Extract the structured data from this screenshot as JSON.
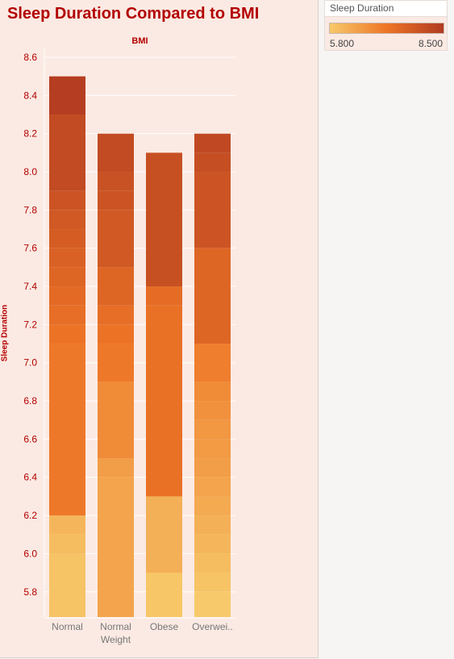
{
  "chart_data": {
    "type": "bar",
    "stacked": true,
    "title": "Sleep Duration Compared to BMI",
    "top_axis_label": "BMI",
    "ylabel": "Sleep Duration",
    "ylim": [
      5.65,
      8.6
    ],
    "yticks": [
      5.8,
      6.0,
      6.2,
      6.4,
      6.6,
      6.8,
      7.0,
      7.2,
      7.4,
      7.6,
      7.8,
      8.0,
      8.2,
      8.4,
      8.6
    ],
    "ytick_labels": [
      "5.8",
      "6.0",
      "6.2",
      "6.4",
      "6.6",
      "6.8",
      "7.0",
      "7.2",
      "7.4",
      "7.6",
      "7.8",
      "8.0",
      "8.2",
      "8.4",
      "8.6"
    ],
    "grid": true,
    "categories": [
      "Normal",
      "Normal Weight",
      "Obese",
      "Overwei.."
    ],
    "bars": [
      {
        "category": "Normal",
        "bands": [
          {
            "from": 5.65,
            "to": 6.0,
            "value": 5.9
          },
          {
            "from": 6.0,
            "to": 6.1,
            "value": 6.0
          },
          {
            "from": 6.1,
            "to": 6.2,
            "value": 6.1
          },
          {
            "from": 6.2,
            "to": 7.1,
            "value": 7.1
          },
          {
            "from": 7.1,
            "to": 7.2,
            "value": 7.2
          },
          {
            "from": 7.2,
            "to": 7.3,
            "value": 7.3
          },
          {
            "from": 7.3,
            "to": 7.4,
            "value": 7.4
          },
          {
            "from": 7.4,
            "to": 7.5,
            "value": 7.5
          },
          {
            "from": 7.5,
            "to": 7.6,
            "value": 7.6
          },
          {
            "from": 7.6,
            "to": 7.7,
            "value": 7.7
          },
          {
            "from": 7.7,
            "to": 7.8,
            "value": 7.8
          },
          {
            "from": 7.8,
            "to": 7.9,
            "value": 7.9
          },
          {
            "from": 7.9,
            "to": 8.3,
            "value": 8.1
          },
          {
            "from": 8.3,
            "to": 8.5,
            "value": 8.4
          }
        ]
      },
      {
        "category": "Normal Weight",
        "bands": [
          {
            "from": 5.65,
            "to": 6.4,
            "value": 6.4
          },
          {
            "from": 6.4,
            "to": 6.5,
            "value": 6.5
          },
          {
            "from": 6.5,
            "to": 6.9,
            "value": 6.8
          },
          {
            "from": 6.9,
            "to": 7.1,
            "value": 7.1
          },
          {
            "from": 7.1,
            "to": 7.2,
            "value": 7.2
          },
          {
            "from": 7.2,
            "to": 7.3,
            "value": 7.3
          },
          {
            "from": 7.3,
            "to": 7.5,
            "value": 7.5
          },
          {
            "from": 7.5,
            "to": 7.8,
            "value": 7.8
          },
          {
            "from": 7.8,
            "to": 7.9,
            "value": 7.9
          },
          {
            "from": 7.9,
            "to": 8.0,
            "value": 7.95
          },
          {
            "from": 8.0,
            "to": 8.2,
            "value": 8.1
          }
        ]
      },
      {
        "category": "Obese",
        "bands": [
          {
            "from": 5.65,
            "to": 5.9,
            "value": 5.85
          },
          {
            "from": 5.9,
            "to": 6.3,
            "value": 6.2
          },
          {
            "from": 6.3,
            "to": 7.3,
            "value": 7.25
          },
          {
            "from": 7.3,
            "to": 7.4,
            "value": 7.35
          },
          {
            "from": 7.4,
            "to": 8.1,
            "value": 8.0
          }
        ]
      },
      {
        "category": "Overwei..",
        "bands": [
          {
            "from": 5.65,
            "to": 5.8,
            "value": 5.8
          },
          {
            "from": 5.8,
            "to": 5.9,
            "value": 5.9
          },
          {
            "from": 5.9,
            "to": 6.0,
            "value": 6.0
          },
          {
            "from": 6.0,
            "to": 6.1,
            "value": 6.1
          },
          {
            "from": 6.1,
            "to": 6.2,
            "value": 6.2
          },
          {
            "from": 6.2,
            "to": 6.3,
            "value": 6.3
          },
          {
            "from": 6.3,
            "to": 6.4,
            "value": 6.4
          },
          {
            "from": 6.4,
            "to": 6.5,
            "value": 6.5
          },
          {
            "from": 6.5,
            "to": 6.6,
            "value": 6.55
          },
          {
            "from": 6.6,
            "to": 6.7,
            "value": 6.6
          },
          {
            "from": 6.7,
            "to": 6.8,
            "value": 6.7
          },
          {
            "from": 6.8,
            "to": 6.9,
            "value": 6.8
          },
          {
            "from": 6.9,
            "to": 7.1,
            "value": 7.0
          },
          {
            "from": 7.1,
            "to": 7.6,
            "value": 7.5
          },
          {
            "from": 7.6,
            "to": 8.0,
            "value": 7.9
          },
          {
            "from": 8.0,
            "to": 8.1,
            "value": 8.05
          },
          {
            "from": 8.1,
            "to": 8.2,
            "value": 8.15
          }
        ]
      }
    ],
    "color_legend": {
      "title": "Sleep Duration",
      "min": 5.8,
      "max": 8.5,
      "min_label": "5.800",
      "max_label": "8.500",
      "color_stops": [
        "#f7c96a",
        "#ee7526",
        "#b03a22"
      ]
    }
  },
  "colors": {
    "title": "#b30000",
    "tick_label": "#b30000",
    "category_label": "#777777",
    "panel_background": "#fbeae3",
    "gridline": "#ffffff"
  }
}
